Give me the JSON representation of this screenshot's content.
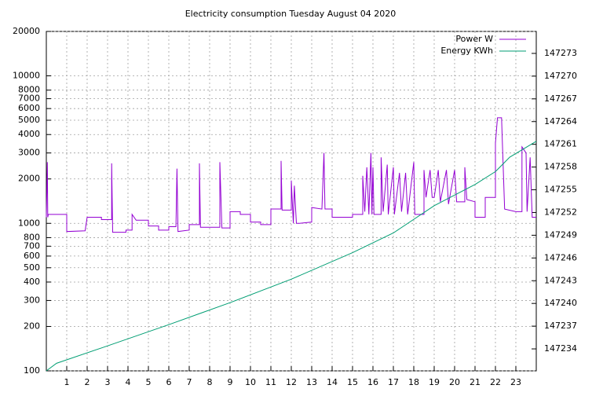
{
  "chart_data": {
    "type": "line",
    "title": "Electricity consumption Tuesday August 04 2020",
    "xlim": [
      0,
      24
    ],
    "xticks": [
      1,
      2,
      3,
      4,
      5,
      6,
      7,
      8,
      9,
      10,
      11,
      12,
      13,
      14,
      15,
      16,
      17,
      18,
      19,
      20,
      21,
      22,
      23
    ],
    "ylim": [
      100,
      20000
    ],
    "log_y": true,
    "yticks": [
      100,
      200,
      300,
      400,
      500,
      600,
      700,
      800,
      1000,
      2000,
      3000,
      4000,
      5000,
      6000,
      7000,
      8000,
      10000,
      20000
    ],
    "y2lim": [
      147231.1,
      147275.9
    ],
    "y2ticks": [
      147234,
      147237,
      147240,
      147243,
      147246,
      147249,
      147252,
      147255,
      147258,
      147261,
      147264,
      147267,
      147270,
      147273
    ],
    "grid": true,
    "legend": "top-right",
    "series": [
      {
        "name": "Power W",
        "color": "#9400d3",
        "x": [
          0,
          0.05,
          0.07,
          0.1,
          1.0,
          1.0,
          1.9,
          2.0,
          2.7,
          2.7,
          3.2,
          3.2,
          3.25,
          3.9,
          3.9,
          4.2,
          4.2,
          4.4,
          5.0,
          5.0,
          5.5,
          5.5,
          6.0,
          6.0,
          6.35,
          6.4,
          6.45,
          7.0,
          7.0,
          7.5,
          7.5,
          7.55,
          8.5,
          8.5,
          8.6,
          9.0,
          9.0,
          9.5,
          9.5,
          10.0,
          10.0,
          10.5,
          10.5,
          11.0,
          11.0,
          11.5,
          11.5,
          11.55,
          12.0,
          12.0,
          12.1,
          12.15,
          12.25,
          12.4,
          13.0,
          13.0,
          13.5,
          13.6,
          13.65,
          14.0,
          14.0,
          15.0,
          15.0,
          15.5,
          15.5,
          15.6,
          15.7,
          15.8,
          15.9,
          15.95,
          16.0,
          16.05,
          16.4,
          16.4,
          16.5,
          16.7,
          16.75,
          17.0,
          17.05,
          17.3,
          17.4,
          17.6,
          17.7,
          18.0,
          18.05,
          18.5,
          18.5,
          18.6,
          18.8,
          18.9,
          19.0,
          19.2,
          19.3,
          19.6,
          19.7,
          20.0,
          20.1,
          20.5,
          20.5,
          20.6,
          21.0,
          21.0,
          21.5,
          21.5,
          22.0,
          22.0,
          22.1,
          22.3,
          22.35,
          22.45,
          23.0,
          23.3,
          23.3,
          23.5,
          23.55,
          23.7,
          23.8,
          24.0
        ],
        "values": [
          1100,
          2600,
          1100,
          1150,
          1150,
          880,
          890,
          1100,
          1100,
          1060,
          1060,
          2550,
          870,
          870,
          900,
          900,
          1150,
          1050,
          1050,
          960,
          960,
          900,
          900,
          950,
          950,
          2350,
          880,
          900,
          980,
          980,
          2550,
          940,
          940,
          2600,
          930,
          930,
          1200,
          1200,
          1150,
          1150,
          1020,
          1020,
          980,
          980,
          1250,
          1250,
          2650,
          1230,
          1230,
          1950,
          1000,
          1800,
          1000,
          1000,
          1020,
          1280,
          1250,
          3000,
          1250,
          1250,
          1100,
          1100,
          1150,
          1150,
          2100,
          1200,
          2400,
          1150,
          3000,
          1150,
          2400,
          1150,
          1150,
          2800,
          1200,
          2500,
          1150,
          2400,
          1150,
          2200,
          1200,
          2200,
          1150,
          2600,
          1150,
          1150,
          2300,
          1500,
          2300,
          1500,
          1500,
          2300,
          1400,
          2300,
          1350,
          2300,
          1400,
          1400,
          2400,
          1450,
          1400,
          1100,
          1100,
          1500,
          1500,
          3500,
          5200,
          5200,
          3200,
          1250,
          1200,
          1200,
          3300,
          3000,
          1200,
          2800,
          1100,
          1100
        ]
      },
      {
        "name": "Energy KWh",
        "color": "#009e73",
        "axis": "y2",
        "x": [
          0,
          0.5,
          3,
          6,
          9,
          12,
          15,
          17,
          19,
          21,
          22,
          22.7,
          24
        ],
        "values": [
          147231.1,
          147232.1,
          147234.4,
          147237.2,
          147240.1,
          147243.2,
          147246.7,
          147249.3,
          147252.9,
          147255.7,
          147257.4,
          147259.3,
          147261.4
        ]
      }
    ]
  }
}
